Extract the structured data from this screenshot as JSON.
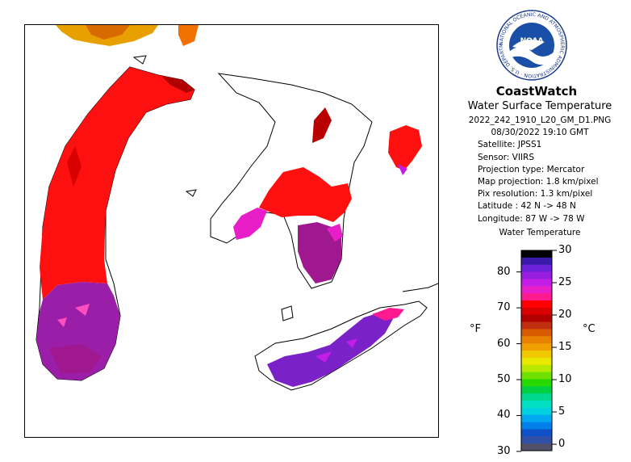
{
  "header": {
    "brand": "CoastWatch",
    "product": "Water Surface Temperature"
  },
  "logo": {
    "text": "NOAA",
    "ring_text": "NATIONAL OCEANIC AND ATMOSPHERIC ADMINISTRATION · U.S. DEPARTMENT OF COMMERCE ·"
  },
  "metadata": {
    "filename": "2022_242_1910_L20_GM_D1.PNG",
    "datetime": "08/30/2022    19:10 GMT",
    "satellite": "Satellite: JPSS1",
    "sensor": "Sensor: VIIRS",
    "projection_type": "Projection type:  Mercator",
    "map_projection": "Map projection: 1.8 km/pixel",
    "pix_resolution": "Pix resolution: 1.3 km/pixel",
    "latitude": "Latitude : 42 N -> 48 N",
    "longitude": "Longitude: 87 W -> 78 W"
  },
  "legend": {
    "title": "Water Temperature",
    "unit_f": "°F",
    "unit_c": "°C",
    "f_ticks": [
      {
        "label": "80",
        "value_f": 80
      },
      {
        "label": "70",
        "value_f": 70
      },
      {
        "label": "60",
        "value_f": 60
      },
      {
        "label": "50",
        "value_f": 50
      },
      {
        "label": "40",
        "value_f": 40
      },
      {
        "label": "30",
        "value_f": 30
      }
    ],
    "c_ticks": [
      {
        "label": "30",
        "value_c": 30
      },
      {
        "label": "25",
        "value_c": 25
      },
      {
        "label": "20",
        "value_c": 20
      },
      {
        "label": "15",
        "value_c": 15
      },
      {
        "label": "10",
        "value_c": 10
      },
      {
        "label": "5",
        "value_c": 5
      },
      {
        "label": "0",
        "value_c": 0
      }
    ],
    "range_c": [
      -1,
      30
    ],
    "colors_warm_to_cold": [
      "#000000",
      "#3a1aa8",
      "#6b22d8",
      "#9a1ee0",
      "#c21ee8",
      "#e81ec8",
      "#ff1a90",
      "#ff0000",
      "#d80000",
      "#b00000",
      "#c03010",
      "#d85a00",
      "#e88000",
      "#f0a000",
      "#f0c800",
      "#e8e800",
      "#b8e800",
      "#70e000",
      "#28d800",
      "#00d040",
      "#00d890",
      "#00e0c0",
      "#00d0e0",
      "#00a8f0",
      "#0080e8",
      "#1050c8",
      "#3050a8",
      "#505068"
    ]
  }
}
